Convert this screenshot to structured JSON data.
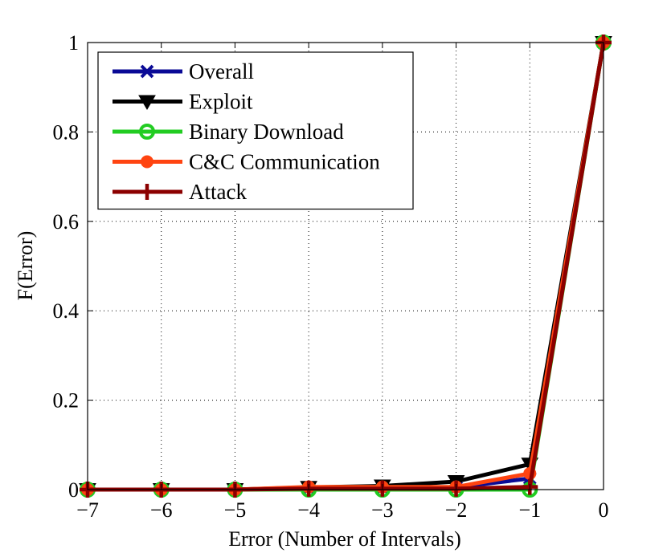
{
  "chart_data": {
    "type": "line",
    "title": "",
    "xlabel": "Error (Number of Intervals)",
    "ylabel": "F(Error)",
    "xlim": [
      -7,
      0
    ],
    "ylim": [
      0,
      1
    ],
    "xticks": [
      -7,
      -6,
      -5,
      -4,
      -3,
      -2,
      -1,
      0
    ],
    "xtick_labels": [
      "−7",
      "−6",
      "−5",
      "−4",
      "−3",
      "−2",
      "−1",
      "0"
    ],
    "yticks": [
      0,
      0.2,
      0.4,
      0.6,
      0.8,
      1
    ],
    "ytick_labels": [
      "0",
      "0.2",
      "0.4",
      "0.6",
      "0.8",
      "1"
    ],
    "grid": true,
    "legend_position": "top-left",
    "x": [
      -7,
      -6,
      -5,
      -4,
      -3,
      -2,
      -1,
      0
    ],
    "series": [
      {
        "name": "Overall",
        "color": "#0a0a96",
        "marker": "x",
        "values": [
          0,
          0,
          0,
          0.003,
          0.004,
          0.005,
          0.025,
          1
        ]
      },
      {
        "name": "Exploit",
        "color": "#000000",
        "marker": "triangle-down",
        "values": [
          0,
          0,
          0,
          0.005,
          0.008,
          0.018,
          0.057,
          1
        ]
      },
      {
        "name": "Binary Download",
        "color": "#22cc22",
        "marker": "circle-open",
        "values": [
          0,
          0,
          0,
          0,
          0,
          0,
          0,
          1
        ]
      },
      {
        "name": "C&C Communication",
        "color": "#ff4411",
        "marker": "circle",
        "values": [
          0,
          0,
          0,
          0.006,
          0.006,
          0.006,
          0.036,
          1
        ]
      },
      {
        "name": "Attack",
        "color": "#8b0000",
        "marker": "plus",
        "values": [
          0,
          0,
          0,
          0.002,
          0.002,
          0.002,
          0.006,
          1
        ]
      }
    ]
  }
}
